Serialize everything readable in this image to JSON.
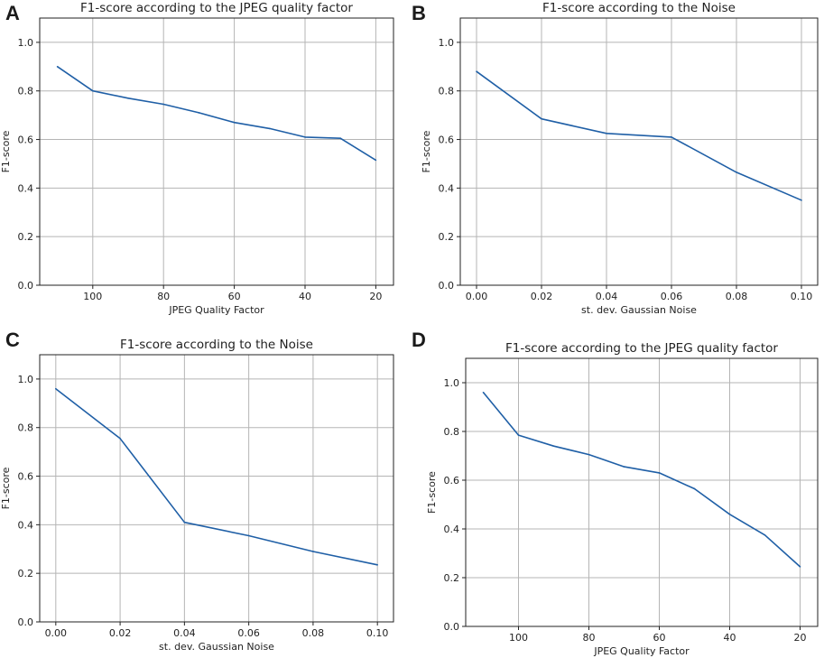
{
  "colors": {
    "series": "#1f5fa6",
    "grid": "#b5b5b5",
    "axis": "#222222"
  },
  "chart_data": [
    {
      "panel": "A",
      "type": "line",
      "title": "F1-score according to the JPEG quality factor",
      "xlabel": "JPEG Quality Factor",
      "ylabel": "F1-score",
      "x_inverted": true,
      "xlim": [
        115,
        15
      ],
      "ylim": [
        0.0,
        1.1
      ],
      "xticks": [
        100,
        80,
        60,
        40,
        20
      ],
      "xtick_labels": [
        "100",
        "80",
        "60",
        "40",
        "20"
      ],
      "yticks": [
        0.0,
        0.2,
        0.4,
        0.6,
        0.8,
        1.0
      ],
      "ytick_labels": [
        "0.0",
        "0.2",
        "0.4",
        "0.6",
        "0.8",
        "1.0"
      ],
      "grid": true,
      "series": [
        {
          "name": "F1-score",
          "x": [
            110,
            100,
            90,
            80,
            70,
            60,
            50,
            40,
            30,
            20
          ],
          "y": [
            0.9,
            0.8,
            0.77,
            0.745,
            0.71,
            0.67,
            0.645,
            0.61,
            0.605,
            0.515
          ]
        }
      ]
    },
    {
      "panel": "B",
      "type": "line",
      "title": "F1-score according to the Noise",
      "xlabel": "st. dev. Gaussian Noise",
      "ylabel": "F1-score",
      "x_inverted": false,
      "xlim": [
        -0.005,
        0.105
      ],
      "ylim": [
        0.0,
        1.1
      ],
      "xticks": [
        0.0,
        0.02,
        0.04,
        0.06,
        0.08,
        0.1
      ],
      "xtick_labels": [
        "0.00",
        "0.02",
        "0.04",
        "0.06",
        "0.08",
        "0.10"
      ],
      "yticks": [
        0.0,
        0.2,
        0.4,
        0.6,
        0.8,
        1.0
      ],
      "ytick_labels": [
        "0.0",
        "0.2",
        "0.4",
        "0.6",
        "0.8",
        "1.0"
      ],
      "grid": true,
      "series": [
        {
          "name": "F1-score",
          "x": [
            0.0,
            0.02,
            0.04,
            0.06,
            0.08,
            0.1
          ],
          "y": [
            0.88,
            0.685,
            0.625,
            0.61,
            0.465,
            0.35
          ]
        }
      ]
    },
    {
      "panel": "C",
      "type": "line",
      "title": "F1-score according to the Noise",
      "xlabel": "st. dev. Gaussian Noise",
      "ylabel": "F1-score",
      "x_inverted": false,
      "xlim": [
        -0.005,
        0.105
      ],
      "ylim": [
        0.0,
        1.1
      ],
      "xticks": [
        0.0,
        0.02,
        0.04,
        0.06,
        0.08,
        0.1
      ],
      "xtick_labels": [
        "0.00",
        "0.02",
        "0.04",
        "0.06",
        "0.08",
        "0.10"
      ],
      "yticks": [
        0.0,
        0.2,
        0.4,
        0.6,
        0.8,
        1.0
      ],
      "ytick_labels": [
        "0.0",
        "0.2",
        "0.4",
        "0.6",
        "0.8",
        "1.0"
      ],
      "grid": true,
      "series": [
        {
          "name": "F1-score",
          "x": [
            0.0,
            0.02,
            0.04,
            0.06,
            0.08,
            0.1
          ],
          "y": [
            0.96,
            0.755,
            0.41,
            0.355,
            0.29,
            0.235
          ]
        }
      ]
    },
    {
      "panel": "D",
      "type": "line",
      "title": "F1-score according to the JPEG quality factor",
      "xlabel": "JPEG Quality Factor",
      "ylabel": "F1-score",
      "x_inverted": true,
      "xlim": [
        115,
        15
      ],
      "ylim": [
        0.0,
        1.1
      ],
      "xticks": [
        100,
        80,
        60,
        40,
        20
      ],
      "xtick_labels": [
        "100",
        "80",
        "60",
        "40",
        "20"
      ],
      "yticks": [
        0.0,
        0.2,
        0.4,
        0.6,
        0.8,
        1.0
      ],
      "ytick_labels": [
        "0.0",
        "0.2",
        "0.4",
        "0.6",
        "0.8",
        "1.0"
      ],
      "grid": true,
      "series": [
        {
          "name": "F1-score",
          "x": [
            110,
            100,
            90,
            80,
            70,
            60,
            50,
            40,
            30,
            20
          ],
          "y": [
            0.96,
            0.785,
            0.74,
            0.705,
            0.655,
            0.63,
            0.565,
            0.46,
            0.375,
            0.245
          ]
        }
      ]
    }
  ]
}
